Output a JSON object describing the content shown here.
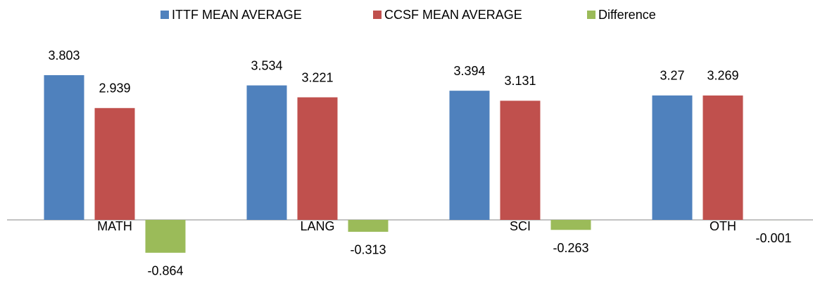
{
  "chart_data": {
    "type": "bar",
    "categories": [
      "MATH",
      "LANG",
      "SCI",
      "OTH"
    ],
    "series": [
      {
        "name": "ITTF MEAN AVERAGE",
        "color": "#4f81bd",
        "values": [
          3.803,
          3.534,
          3.394,
          3.27
        ]
      },
      {
        "name": "CCSF MEAN AVERAGE",
        "color": "#c0504d",
        "values": [
          2.939,
          3.221,
          3.131,
          3.269
        ]
      },
      {
        "name": "Difference",
        "color": "#9bbb59",
        "values": [
          -0.864,
          -0.313,
          -0.263,
          -0.001
        ]
      }
    ],
    "legend": "top"
  }
}
